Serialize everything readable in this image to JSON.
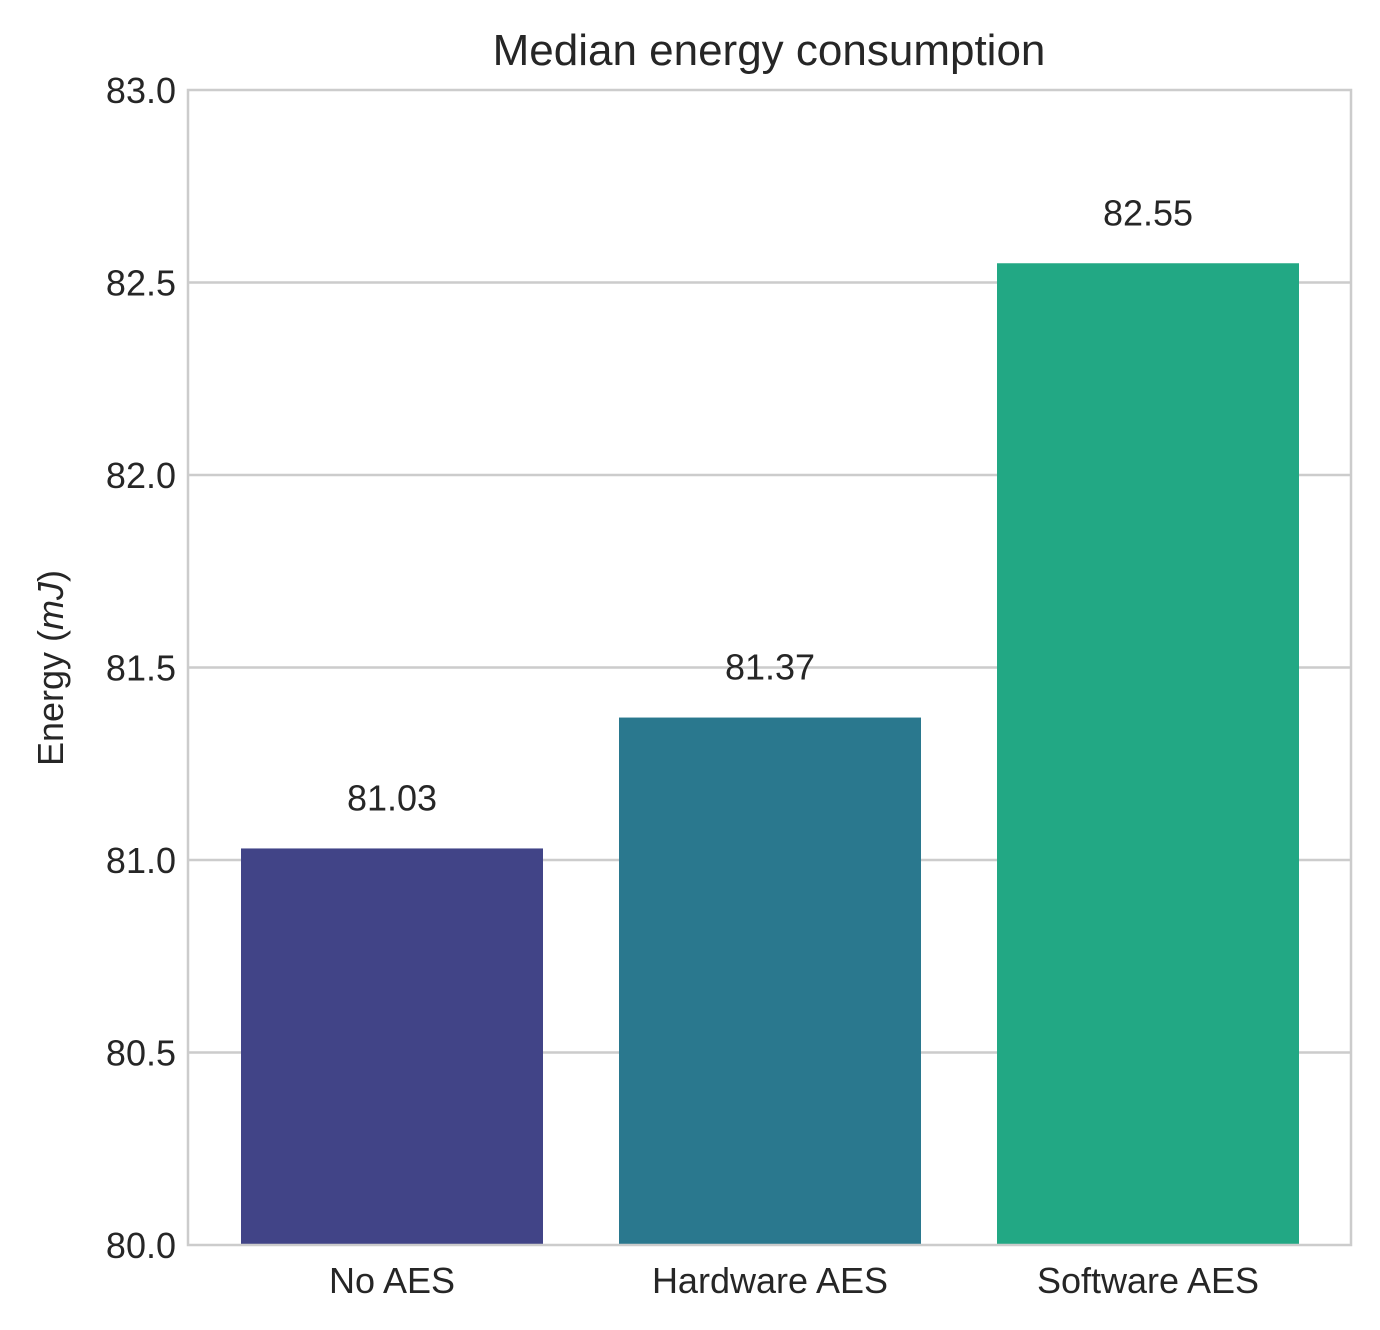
{
  "chart_data": {
    "type": "bar",
    "title": "Median energy consumption",
    "xlabel": "",
    "ylabel_prefix": "Energy (",
    "ylabel_unit": "mJ",
    "ylabel_suffix": ")",
    "categories": [
      "No AES",
      "Hardware AES",
      "Software AES"
    ],
    "values": [
      81.03,
      81.37,
      82.55
    ],
    "value_labels": [
      "81.03",
      "81.37",
      "82.55"
    ],
    "colors": [
      "#414487",
      "#2a788e",
      "#22a884"
    ],
    "ylim": [
      80.0,
      83.0
    ],
    "yticks": [
      80.0,
      80.5,
      81.0,
      81.5,
      82.0,
      82.5,
      83.0
    ],
    "ytick_labels": [
      "80.0",
      "80.5",
      "81.0",
      "81.5",
      "82.0",
      "82.5",
      "83.0"
    ],
    "grid": "horizontal",
    "legend": "none"
  }
}
